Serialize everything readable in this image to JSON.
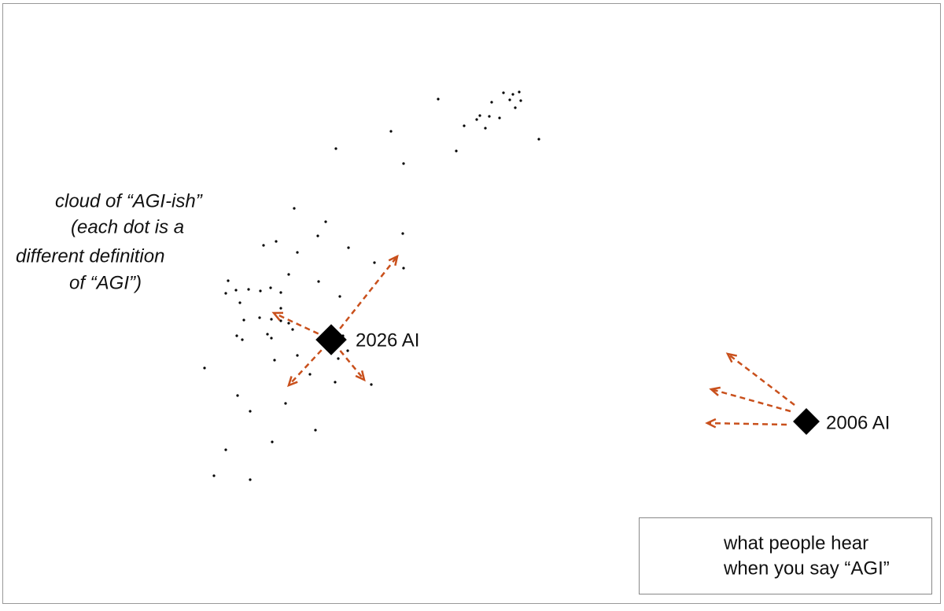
{
  "annotation": {
    "lines": [
      "cloud of “AGI-ish”",
      "(each dot is a",
      "different definition",
      "of “AGI”)"
    ]
  },
  "points": {
    "current": "2026 AI",
    "past": "2006 AI"
  },
  "legend": {
    "lines": [
      "what people hear",
      "when you say “AGI”"
    ]
  }
}
